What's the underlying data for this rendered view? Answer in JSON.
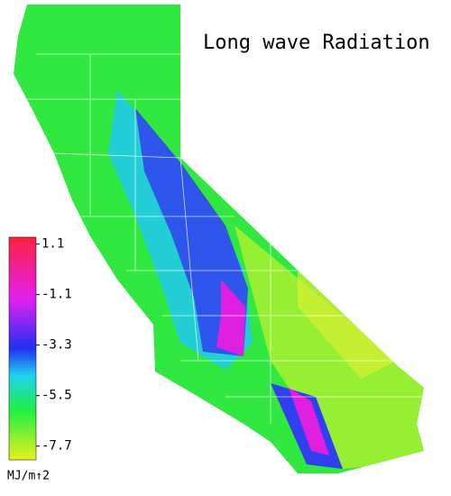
{
  "title": "Long wave Radiation",
  "colorbar": {
    "lim": [
      -8.3,
      1.4
    ],
    "ticks": [
      1.1,
      -1.1,
      -3.3,
      -5.5,
      -7.7
    ],
    "unit": "MJ/m↑2"
  }
}
